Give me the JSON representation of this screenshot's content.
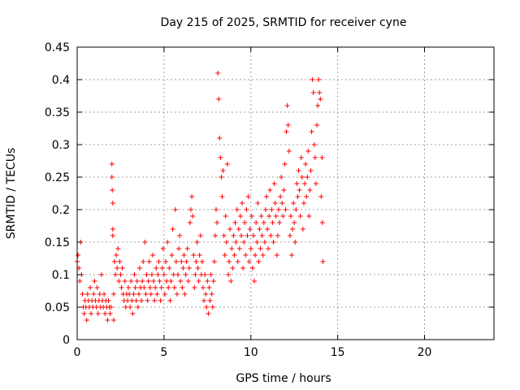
{
  "chart_data": {
    "type": "scatter",
    "title": "Day 215 of 2025, SRMTID for receiver cyne",
    "xlabel": "GPS time / hours",
    "ylabel": "SRMTID / TECUs",
    "xlim": [
      0,
      24
    ],
    "ylim": [
      0,
      0.45
    ],
    "xticks": [
      0,
      5,
      10,
      15,
      20
    ],
    "yticks": [
      0,
      0.05,
      0.1,
      0.15,
      0.2,
      0.25,
      0.3,
      0.35,
      0.4,
      0.45
    ],
    "grid": true,
    "legend": "none",
    "series": [
      {
        "name": "SRMTID",
        "color": "#ff0000",
        "marker": "plus",
        "points": [
          [
            0.0,
            0.12
          ],
          [
            0.05,
            0.13
          ],
          [
            0.1,
            0.11
          ],
          [
            0.15,
            0.09
          ],
          [
            0.2,
            0.15
          ],
          [
            0.25,
            0.1
          ],
          [
            0.3,
            0.07
          ],
          [
            0.35,
            0.05
          ],
          [
            0.4,
            0.04
          ],
          [
            0.45,
            0.06
          ],
          [
            0.5,
            0.05
          ],
          [
            0.55,
            0.03
          ],
          [
            0.6,
            0.07
          ],
          [
            0.65,
            0.06
          ],
          [
            0.7,
            0.05
          ],
          [
            0.75,
            0.08
          ],
          [
            0.8,
            0.04
          ],
          [
            0.85,
            0.06
          ],
          [
            0.9,
            0.05
          ],
          [
            0.95,
            0.07
          ],
          [
            1.0,
            0.09
          ],
          [
            1.05,
            0.06
          ],
          [
            1.1,
            0.05
          ],
          [
            1.15,
            0.08
          ],
          [
            1.2,
            0.04
          ],
          [
            1.25,
            0.06
          ],
          [
            1.3,
            0.07
          ],
          [
            1.35,
            0.05
          ],
          [
            1.4,
            0.1
          ],
          [
            1.45,
            0.06
          ],
          [
            1.5,
            0.05
          ],
          [
            1.55,
            0.07
          ],
          [
            1.6,
            0.04
          ],
          [
            1.65,
            0.06
          ],
          [
            1.7,
            0.05
          ],
          [
            1.75,
            0.03
          ],
          [
            1.8,
            0.06
          ],
          [
            1.85,
            0.05
          ],
          [
            1.9,
            0.04
          ],
          [
            1.95,
            0.05
          ],
          [
            2.0,
            0.27
          ],
          [
            2.0,
            0.25
          ],
          [
            2.02,
            0.23
          ],
          [
            2.05,
            0.21
          ],
          [
            2.05,
            0.17
          ],
          [
            2.05,
            0.16
          ],
          [
            2.1,
            0.03
          ],
          [
            2.1,
            0.07
          ],
          [
            2.15,
            0.12
          ],
          [
            2.2,
            0.1
          ],
          [
            2.25,
            0.13
          ],
          [
            2.3,
            0.11
          ],
          [
            2.35,
            0.14
          ],
          [
            2.4,
            0.09
          ],
          [
            2.45,
            0.12
          ],
          [
            2.5,
            0.1
          ],
          [
            2.55,
            0.08
          ],
          [
            2.6,
            0.11
          ],
          [
            2.65,
            0.07
          ],
          [
            2.7,
            0.06
          ],
          [
            2.75,
            0.09
          ],
          [
            2.8,
            0.05
          ],
          [
            2.85,
            0.07
          ],
          [
            2.9,
            0.06
          ],
          [
            2.95,
            0.08
          ],
          [
            3.0,
            0.07
          ],
          [
            3.05,
            0.05
          ],
          [
            3.1,
            0.09
          ],
          [
            3.15,
            0.06
          ],
          [
            3.2,
            0.04
          ],
          [
            3.25,
            0.07
          ],
          [
            3.3,
            0.1
          ],
          [
            3.35,
            0.08
          ],
          [
            3.4,
            0.06
          ],
          [
            3.45,
            0.09
          ],
          [
            3.5,
            0.05
          ],
          [
            3.55,
            0.07
          ],
          [
            3.6,
            0.11
          ],
          [
            3.65,
            0.08
          ],
          [
            3.7,
            0.06
          ],
          [
            3.75,
            0.09
          ],
          [
            3.8,
            0.12
          ],
          [
            3.85,
            0.08
          ],
          [
            3.9,
            0.15
          ],
          [
            3.95,
            0.07
          ],
          [
            4.0,
            0.1
          ],
          [
            4.05,
            0.06
          ],
          [
            4.1,
            0.09
          ],
          [
            4.15,
            0.12
          ],
          [
            4.2,
            0.08
          ],
          [
            4.25,
            0.07
          ],
          [
            4.3,
            0.1
          ],
          [
            4.35,
            0.13
          ],
          [
            4.4,
            0.09
          ],
          [
            4.45,
            0.06
          ],
          [
            4.5,
            0.08
          ],
          [
            4.55,
            0.11
          ],
          [
            4.6,
            0.07
          ],
          [
            4.65,
            0.1
          ],
          [
            4.7,
            0.12
          ],
          [
            4.75,
            0.09
          ],
          [
            4.8,
            0.06
          ],
          [
            4.85,
            0.08
          ],
          [
            4.9,
            0.11
          ],
          [
            4.95,
            0.14
          ],
          [
            5.0,
            0.1
          ],
          [
            5.05,
            0.07
          ],
          [
            5.1,
            0.12
          ],
          [
            5.15,
            0.09
          ],
          [
            5.2,
            0.15
          ],
          [
            5.25,
            0.08
          ],
          [
            5.3,
            0.11
          ],
          [
            5.35,
            0.06
          ],
          [
            5.4,
            0.09
          ],
          [
            5.45,
            0.13
          ],
          [
            5.5,
            0.17
          ],
          [
            5.55,
            0.1
          ],
          [
            5.6,
            0.08
          ],
          [
            5.65,
            0.2
          ],
          [
            5.7,
            0.12
          ],
          [
            5.75,
            0.07
          ],
          [
            5.8,
            0.1
          ],
          [
            5.85,
            0.14
          ],
          [
            5.9,
            0.16
          ],
          [
            5.95,
            0.09
          ],
          [
            6.0,
            0.12
          ],
          [
            6.05,
            0.08
          ],
          [
            6.1,
            0.11
          ],
          [
            6.15,
            0.13
          ],
          [
            6.2,
            0.07
          ],
          [
            6.25,
            0.1
          ],
          [
            6.3,
            0.12
          ],
          [
            6.35,
            0.14
          ],
          [
            6.4,
            0.09
          ],
          [
            6.45,
            0.11
          ],
          [
            6.5,
            0.18
          ],
          [
            6.55,
            0.2
          ],
          [
            6.6,
            0.22
          ],
          [
            6.65,
            0.19
          ],
          [
            6.7,
            0.13
          ],
          [
            6.75,
            0.08
          ],
          [
            6.8,
            0.1
          ],
          [
            6.85,
            0.12
          ],
          [
            6.9,
            0.15
          ],
          [
            6.95,
            0.11
          ],
          [
            7.0,
            0.09
          ],
          [
            7.05,
            0.13
          ],
          [
            7.1,
            0.16
          ],
          [
            7.15,
            0.1
          ],
          [
            7.2,
            0.12
          ],
          [
            7.25,
            0.08
          ],
          [
            7.3,
            0.06
          ],
          [
            7.35,
            0.1
          ],
          [
            7.4,
            0.07
          ],
          [
            7.45,
            0.05
          ],
          [
            7.5,
            0.09
          ],
          [
            7.55,
            0.04
          ],
          [
            7.6,
            0.08
          ],
          [
            7.65,
            0.06
          ],
          [
            7.7,
            0.1
          ],
          [
            7.75,
            0.07
          ],
          [
            7.8,
            0.05
          ],
          [
            7.85,
            0.09
          ],
          [
            7.9,
            0.12
          ],
          [
            7.95,
            0.16
          ],
          [
            8.0,
            0.2
          ],
          [
            8.05,
            0.18
          ],
          [
            8.1,
            0.41
          ],
          [
            8.15,
            0.37
          ],
          [
            8.2,
            0.31
          ],
          [
            8.25,
            0.28
          ],
          [
            8.3,
            0.25
          ],
          [
            8.35,
            0.22
          ],
          [
            8.4,
            0.26
          ],
          [
            8.45,
            0.16
          ],
          [
            8.5,
            0.13
          ],
          [
            8.55,
            0.19
          ],
          [
            8.6,
            0.15
          ],
          [
            8.65,
            0.27
          ],
          [
            8.7,
            0.1
          ],
          [
            8.75,
            0.12
          ],
          [
            8.8,
            0.17
          ],
          [
            8.85,
            0.09
          ],
          [
            8.9,
            0.14
          ],
          [
            8.95,
            0.11
          ],
          [
            9.0,
            0.16
          ],
          [
            9.05,
            0.13
          ],
          [
            9.1,
            0.18
          ],
          [
            9.15,
            0.15
          ],
          [
            9.2,
            0.2
          ],
          [
            9.25,
            0.12
          ],
          [
            9.3,
            0.17
          ],
          [
            9.35,
            0.14
          ],
          [
            9.4,
            0.19
          ],
          [
            9.45,
            0.16
          ],
          [
            9.5,
            0.21
          ],
          [
            9.55,
            0.11
          ],
          [
            9.6,
            0.15
          ],
          [
            9.65,
            0.18
          ],
          [
            9.7,
            0.13
          ],
          [
            9.75,
            0.2
          ],
          [
            9.8,
            0.16
          ],
          [
            9.85,
            0.22
          ],
          [
            9.9,
            0.12
          ],
          [
            9.95,
            0.17
          ],
          [
            10.0,
            0.14
          ],
          [
            10.05,
            0.19
          ],
          [
            10.1,
            0.11
          ],
          [
            10.15,
            0.16
          ],
          [
            10.2,
            0.09
          ],
          [
            10.25,
            0.13
          ],
          [
            10.3,
            0.18
          ],
          [
            10.35,
            0.15
          ],
          [
            10.4,
            0.21
          ],
          [
            10.45,
            0.12
          ],
          [
            10.5,
            0.17
          ],
          [
            10.55,
            0.14
          ],
          [
            10.6,
            0.19
          ],
          [
            10.65,
            0.16
          ],
          [
            10.7,
            0.13
          ],
          [
            10.75,
            0.18
          ],
          [
            10.8,
            0.15
          ],
          [
            10.85,
            0.2
          ],
          [
            10.9,
            0.22
          ],
          [
            10.95,
            0.17
          ],
          [
            11.0,
            0.14
          ],
          [
            11.05,
            0.19
          ],
          [
            11.1,
            0.23
          ],
          [
            11.15,
            0.16
          ],
          [
            11.2,
            0.2
          ],
          [
            11.25,
            0.18
          ],
          [
            11.3,
            0.15
          ],
          [
            11.35,
            0.24
          ],
          [
            11.4,
            0.21
          ],
          [
            11.45,
            0.19
          ],
          [
            11.5,
            0.13
          ],
          [
            11.55,
            0.16
          ],
          [
            11.6,
            0.2
          ],
          [
            11.65,
            0.18
          ],
          [
            11.7,
            0.22
          ],
          [
            11.75,
            0.25
          ],
          [
            11.8,
            0.21
          ],
          [
            11.85,
            0.19
          ],
          [
            11.9,
            0.23
          ],
          [
            11.95,
            0.27
          ],
          [
            12.0,
            0.2
          ],
          [
            12.05,
            0.32
          ],
          [
            12.1,
            0.36
          ],
          [
            12.15,
            0.33
          ],
          [
            12.2,
            0.29
          ],
          [
            12.25,
            0.16
          ],
          [
            12.3,
            0.19
          ],
          [
            12.35,
            0.13
          ],
          [
            12.4,
            0.17
          ],
          [
            12.45,
            0.21
          ],
          [
            12.5,
            0.18
          ],
          [
            12.55,
            0.15
          ],
          [
            12.6,
            0.2
          ],
          [
            12.65,
            0.24
          ],
          [
            12.7,
            0.22
          ],
          [
            12.75,
            0.26
          ],
          [
            12.8,
            0.23
          ],
          [
            12.85,
            0.19
          ],
          [
            12.9,
            0.28
          ],
          [
            12.95,
            0.25
          ],
          [
            13.0,
            0.17
          ],
          [
            13.05,
            0.21
          ],
          [
            13.1,
            0.24
          ],
          [
            13.15,
            0.27
          ],
          [
            13.2,
            0.22
          ],
          [
            13.25,
            0.25
          ],
          [
            13.3,
            0.29
          ],
          [
            13.35,
            0.19
          ],
          [
            13.4,
            0.23
          ],
          [
            13.45,
            0.26
          ],
          [
            13.5,
            0.32
          ],
          [
            13.55,
            0.4
          ],
          [
            13.6,
            0.38
          ],
          [
            13.65,
            0.3
          ],
          [
            13.7,
            0.28
          ],
          [
            13.75,
            0.24
          ],
          [
            13.8,
            0.33
          ],
          [
            13.85,
            0.36
          ],
          [
            13.9,
            0.4
          ],
          [
            13.95,
            0.38
          ],
          [
            14.0,
            0.37
          ],
          [
            14.05,
            0.22
          ],
          [
            14.1,
            0.28
          ],
          [
            14.12,
            0.18
          ],
          [
            14.15,
            0.12
          ]
        ]
      }
    ]
  }
}
